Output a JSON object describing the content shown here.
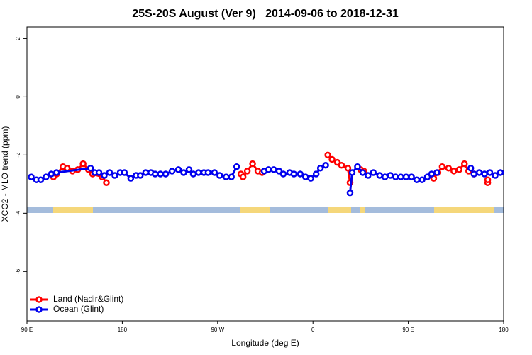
{
  "chart_data": {
    "type": "line",
    "title": "25S-20S August (Ver 9)   2014-09-06 to 2018-12-31",
    "xlabel": "Longitude (deg E)",
    "ylabel": "XCO2 - MLO trend (ppm)",
    "xlim": [
      90,
      540
    ],
    "ylim": [
      -7.7,
      2.4
    ],
    "xticks": [
      {
        "value": 90,
        "label": "90 E"
      },
      180,
      {
        "value": 270,
        "label": "90 W"
      },
      {
        "value": 360,
        "label": "0"
      },
      {
        "value": 450,
        "label": "90 E"
      },
      180.0000001
    ],
    "yticks": [
      -6,
      -4,
      -2,
      0,
      2
    ],
    "legend": "bottom-left",
    "series": [
      {
        "name": "Land (Nadir&Glint)",
        "color": "#ff0000",
        "x": [
          115,
          118,
          124,
          128,
          133,
          138,
          143,
          148,
          152,
          161,
          165,
          null,
          292,
          294,
          298,
          303,
          308,
          312,
          null,
          374,
          378,
          383,
          387,
          393,
          395,
          null,
          405,
          408,
          null,
          474,
          478,
          482,
          488,
          493,
          498,
          503,
          507,
          512,
          null,
          525,
          525
        ],
        "values": [
          -2.75,
          -2.65,
          -2.4,
          -2.45,
          -2.55,
          -2.5,
          -2.3,
          -2.5,
          -2.65,
          -2.75,
          -2.95,
          null,
          -2.65,
          -2.75,
          -2.55,
          -2.3,
          -2.55,
          -2.6,
          null,
          -2.0,
          -2.15,
          -2.25,
          -2.35,
          -2.45,
          -2.95,
          null,
          -2.5,
          -2.55,
          null,
          -2.8,
          -2.6,
          -2.4,
          -2.45,
          -2.55,
          -2.5,
          -2.3,
          -2.55,
          -2.65,
          null,
          -2.95,
          -2.85
        ]
      },
      {
        "name": "Ocean (Glint)",
        "color": "#0000ee",
        "x": [
          94,
          99,
          103,
          108,
          113,
          118,
          150,
          154,
          158,
          163,
          168,
          173,
          178,
          182,
          188,
          193,
          197,
          202,
          207,
          211,
          216,
          221,
          227,
          233,
          238,
          243,
          247,
          252,
          257,
          261,
          267,
          272,
          278,
          283,
          288,
          null,
          314,
          318,
          323,
          328,
          332,
          338,
          342,
          348,
          353,
          358,
          363,
          367,
          372,
          null,
          395,
          397,
          402,
          407,
          412,
          417,
          423,
          428,
          433,
          438,
          443,
          448,
          453,
          458,
          463,
          468,
          472,
          477,
          null,
          509,
          512,
          517,
          522,
          527,
          532,
          537
        ],
        "values": [
          -2.75,
          -2.85,
          -2.85,
          -2.75,
          -2.65,
          -2.6,
          -2.45,
          -2.6,
          -2.6,
          -2.7,
          -2.6,
          -2.7,
          -2.6,
          -2.6,
          -2.8,
          -2.7,
          -2.7,
          -2.6,
          -2.6,
          -2.65,
          -2.65,
          -2.65,
          -2.55,
          -2.5,
          -2.6,
          -2.5,
          -2.65,
          -2.6,
          -2.6,
          -2.6,
          -2.6,
          -2.7,
          -2.75,
          -2.75,
          -2.4,
          null,
          -2.55,
          -2.5,
          -2.5,
          -2.55,
          -2.65,
          -2.6,
          -2.65,
          -2.65,
          -2.75,
          -2.8,
          -2.65,
          -2.45,
          -2.35,
          null,
          -3.3,
          -2.6,
          -2.4,
          -2.6,
          -2.7,
          -2.6,
          -2.7,
          -2.75,
          -2.7,
          -2.75,
          -2.75,
          -2.75,
          -2.75,
          -2.85,
          -2.85,
          -2.75,
          -2.65,
          -2.6,
          null,
          -2.45,
          -2.65,
          -2.6,
          -2.65,
          -2.6,
          -2.7,
          -2.6
        ]
      }
    ]
  }
}
